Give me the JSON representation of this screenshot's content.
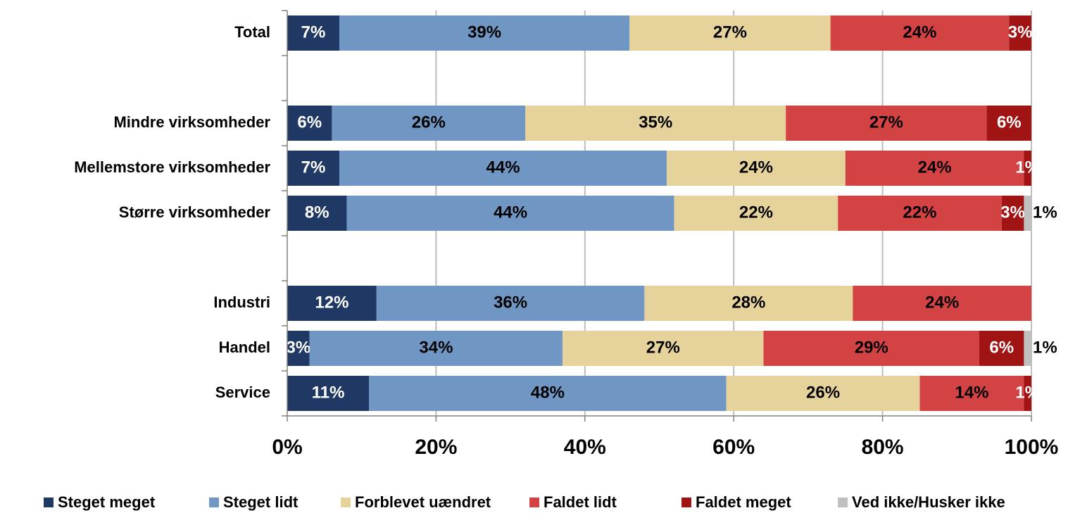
{
  "chart_data": {
    "type": "stacked_barh",
    "categories": [
      "Total",
      null,
      "Mindre virksomheder",
      "Mellemstore virksomheder",
      "Større virksomheder",
      null,
      "Industri",
      "Handel",
      "Service"
    ],
    "series": [
      {
        "name": "Steget meget",
        "color": "#203864",
        "values": [
          7,
          null,
          6,
          7,
          8,
          null,
          12,
          3,
          11
        ]
      },
      {
        "name": "Steget lidt",
        "color": "#7096c3",
        "values": [
          39,
          null,
          26,
          44,
          44,
          null,
          36,
          34,
          48
        ]
      },
      {
        "name": "Forblevet uændret",
        "color": "#e6d29b",
        "values": [
          27,
          null,
          35,
          24,
          22,
          null,
          28,
          27,
          26
        ]
      },
      {
        "name": "Faldet lidt",
        "color": "#d44343",
        "values": [
          24,
          null,
          27,
          24,
          22,
          null,
          24,
          29,
          14
        ]
      },
      {
        "name": "Faldet meget",
        "color": "#a01414",
        "values": [
          3,
          null,
          6,
          1,
          3,
          null,
          null,
          6,
          1
        ]
      },
      {
        "name": "Ved ikke/Husker ikke",
        "color": "#c0c0c0",
        "values": [
          null,
          null,
          null,
          null,
          1,
          null,
          null,
          1,
          null
        ]
      }
    ],
    "value_labels": [
      [
        "7%",
        null,
        "6%",
        "7%",
        "8%",
        null,
        "12%",
        "3%",
        "11%"
      ],
      [
        "39%",
        null,
        "26%",
        "44%",
        "44%",
        null,
        "36%",
        "34%",
        "48%"
      ],
      [
        "27%",
        null,
        "35%",
        "24%",
        "22%",
        null,
        "28%",
        "27%",
        "26%"
      ],
      [
        "24%",
        null,
        "27%",
        "24%",
        "22%",
        null,
        "24%",
        "29%",
        "14%"
      ],
      [
        "3%",
        null,
        "6%",
        "1%",
        "3%",
        null,
        null,
        "6%",
        "1%"
      ],
      [
        null,
        null,
        null,
        null,
        "1%",
        null,
        null,
        "1%",
        null
      ]
    ],
    "xlim": [
      0,
      100
    ],
    "xticks": [
      {
        "value": 0,
        "label": "0%"
      },
      {
        "value": 20,
        "label": "20%"
      },
      {
        "value": 40,
        "label": "40%"
      },
      {
        "value": 60,
        "label": "60%"
      },
      {
        "value": 80,
        "label": "80%"
      },
      {
        "value": 100,
        "label": "100%"
      }
    ],
    "grid": true,
    "legend": "bottom"
  }
}
